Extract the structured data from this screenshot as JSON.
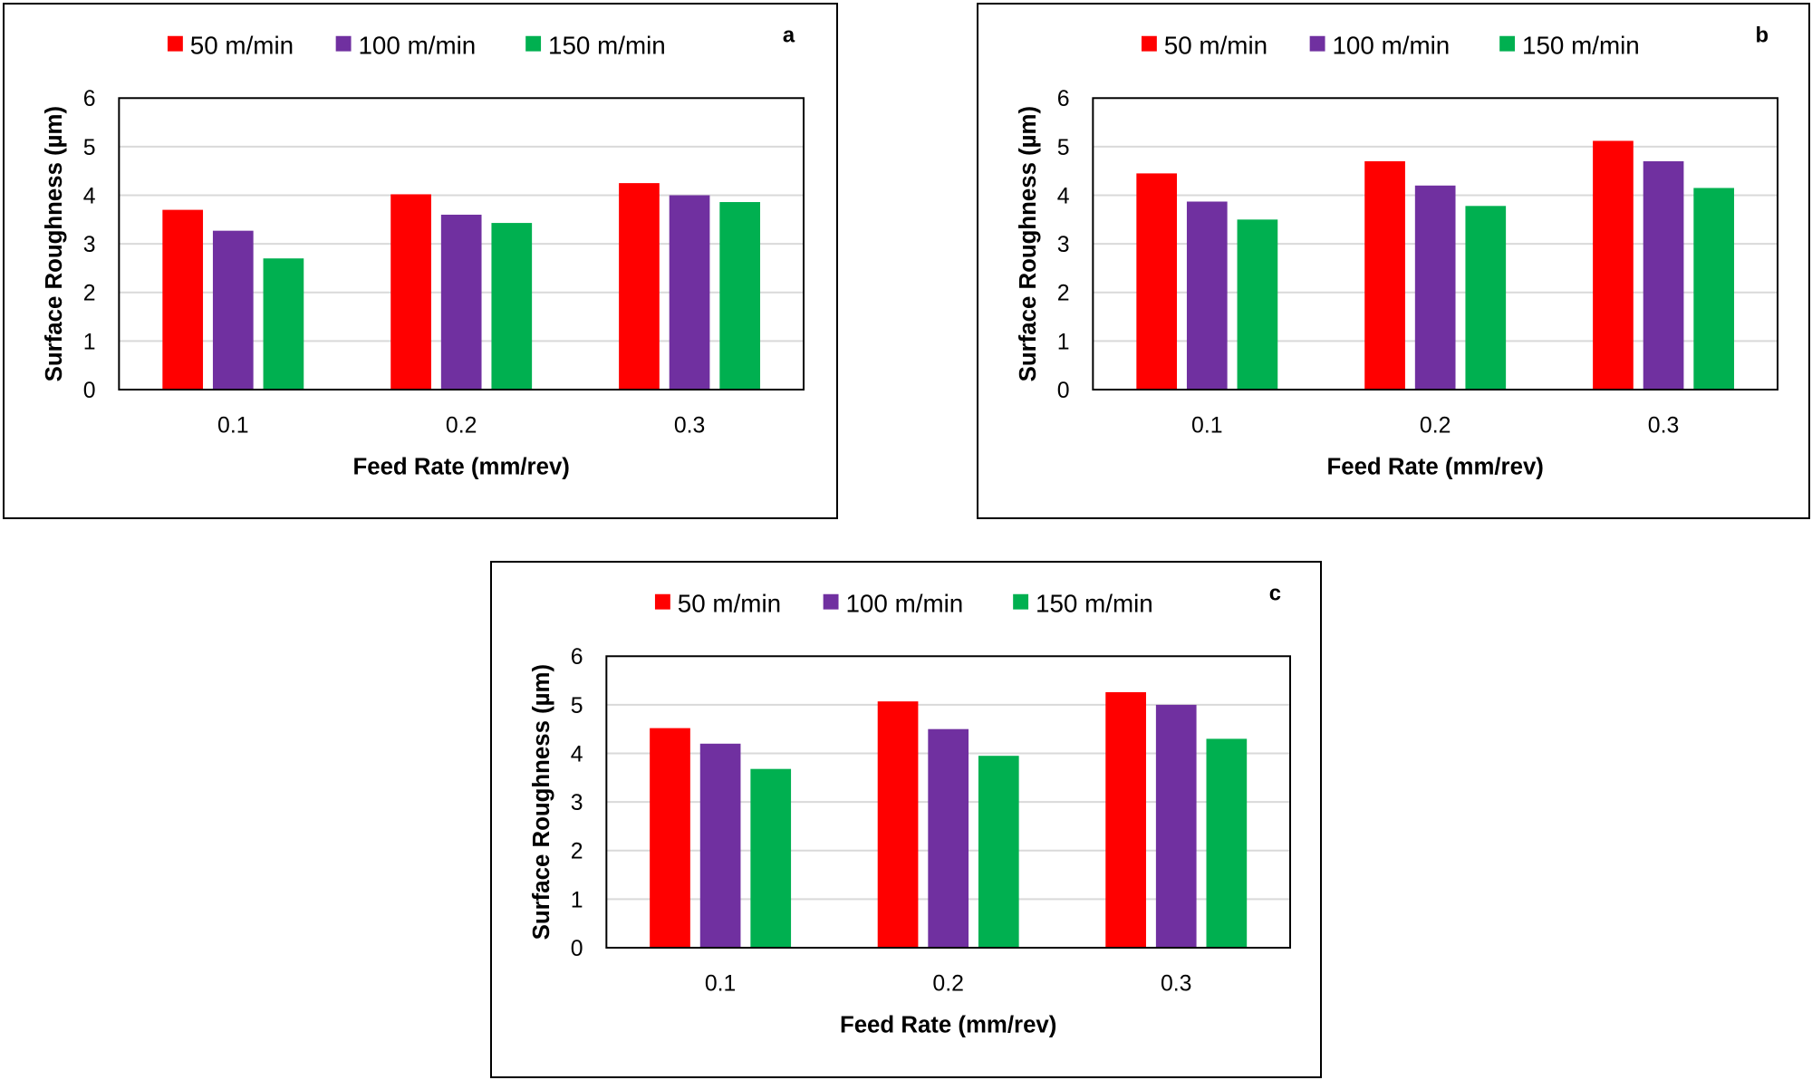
{
  "chart_data": [
    {
      "type": "bar",
      "panel_label": "a",
      "categories": [
        "0.1",
        "0.2",
        "0.3"
      ],
      "series": [
        {
          "name": "50 m/min",
          "color": "#ff0000",
          "values": [
            3.7,
            4.02,
            4.25
          ]
        },
        {
          "name": "100 m/min",
          "color": "#7030a0",
          "values": [
            3.27,
            3.6,
            4.0
          ]
        },
        {
          "name": "150 m/min",
          "color": "#00b050",
          "values": [
            2.7,
            3.43,
            3.86
          ]
        }
      ],
      "xlabel": "Feed Rate (mm/rev)",
      "ylabel": "Surface Roughness (µm)",
      "ylim": [
        0,
        6
      ],
      "yticks": [
        "0",
        "1",
        "2",
        "3",
        "4",
        "5",
        "6"
      ],
      "grid": true,
      "legend_position": "top"
    },
    {
      "type": "bar",
      "panel_label": "b",
      "categories": [
        "0.1",
        "0.2",
        "0.3"
      ],
      "series": [
        {
          "name": "50 m/min",
          "color": "#ff0000",
          "values": [
            4.45,
            4.7,
            5.12
          ]
        },
        {
          "name": "100 m/min",
          "color": "#7030a0",
          "values": [
            3.87,
            4.2,
            4.7
          ]
        },
        {
          "name": "150 m/min",
          "color": "#00b050",
          "values": [
            3.5,
            3.78,
            4.15
          ]
        }
      ],
      "xlabel": "Feed Rate (mm/rev)",
      "ylabel": "Surface Roughness (µm)",
      "ylim": [
        0,
        6
      ],
      "yticks": [
        "0",
        "1",
        "2",
        "3",
        "4",
        "5",
        "6"
      ],
      "grid": true,
      "legend_position": "top"
    },
    {
      "type": "bar",
      "panel_label": "c",
      "categories": [
        "0.1",
        "0.2",
        "0.3"
      ],
      "series": [
        {
          "name": "50 m/min",
          "color": "#ff0000",
          "values": [
            4.52,
            5.07,
            5.26
          ]
        },
        {
          "name": "100 m/min",
          "color": "#7030a0",
          "values": [
            4.2,
            4.5,
            5.0
          ]
        },
        {
          "name": "150 m/min",
          "color": "#00b050",
          "values": [
            3.68,
            3.95,
            4.3
          ]
        }
      ],
      "xlabel": "Feed Rate (mm/rev)",
      "ylabel": "Surface Roughness (µm)",
      "ylim": [
        0,
        6
      ],
      "yticks": [
        "0",
        "1",
        "2",
        "3",
        "4",
        "5",
        "6"
      ],
      "grid": true,
      "legend_position": "top"
    }
  ]
}
